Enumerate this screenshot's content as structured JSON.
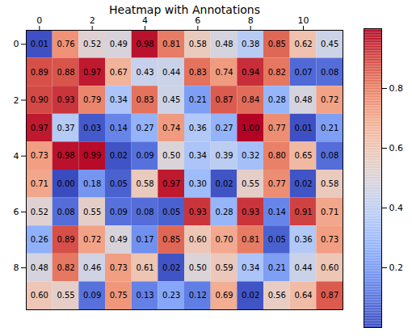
{
  "chart_data": {
    "type": "heatmap",
    "title": "Heatmap with Annotations",
    "values": [
      [
        0.01,
        0.76,
        0.52,
        0.49,
        0.98,
        0.81,
        0.58,
        0.48,
        0.38,
        0.85,
        0.62,
        0.45
      ],
      [
        0.89,
        0.88,
        0.97,
        0.67,
        0.43,
        0.44,
        0.83,
        0.74,
        0.94,
        0.82,
        0.07,
        0.08
      ],
      [
        0.9,
        0.93,
        0.79,
        0.34,
        0.83,
        0.45,
        0.21,
        0.87,
        0.84,
        0.28,
        0.48,
        0.72
      ],
      [
        0.97,
        0.37,
        0.03,
        0.14,
        0.27,
        0.74,
        0.36,
        0.27,
        1.0,
        0.77,
        0.01,
        0.21
      ],
      [
        0.73,
        0.98,
        0.99,
        0.02,
        0.09,
        0.5,
        0.34,
        0.39,
        0.32,
        0.8,
        0.65,
        0.08
      ],
      [
        0.71,
        0.0,
        0.18,
        0.05,
        0.58,
        0.97,
        0.3,
        0.02,
        0.55,
        0.77,
        0.02,
        0.58
      ],
      [
        0.52,
        0.08,
        0.55,
        0.09,
        0.08,
        0.05,
        0.93,
        0.28,
        0.93,
        0.14,
        0.91,
        0.71
      ],
      [
        0.26,
        0.89,
        0.72,
        0.49,
        0.17,
        0.85,
        0.6,
        0.7,
        0.81,
        0.05,
        0.36,
        0.73
      ],
      [
        0.48,
        0.82,
        0.46,
        0.73,
        0.61,
        0.02,
        0.5,
        0.59,
        0.34,
        0.21,
        0.44,
        0.6
      ],
      [
        0.6,
        0.55,
        0.09,
        0.75,
        0.13,
        0.23,
        0.12,
        0.69,
        0.02,
        0.56,
        0.64,
        0.87
      ]
    ],
    "value_labels": [
      [
        "0.01",
        "0.76",
        "0.52",
        "0.49",
        "0.98",
        "0.81",
        "0.58",
        "0.48",
        "0.38",
        "0.85",
        "0.62",
        "0.45"
      ],
      [
        "0.89",
        "0.88",
        "0.97",
        "0.67",
        "0.43",
        "0.44",
        "0.83",
        "0.74",
        "0.94",
        "0.82",
        "0.07",
        "0.08"
      ],
      [
        "0.90",
        "0.93",
        "0.79",
        "0.34",
        "0.83",
        "0.45",
        "0.21",
        "0.87",
        "0.84",
        "0.28",
        "0.48",
        "0.72"
      ],
      [
        "0.97",
        "0.37",
        "0.03",
        "0.14",
        "0.27",
        "0.74",
        "0.36",
        "0.27",
        "1.00",
        "0.77",
        "0.01",
        "0.21"
      ],
      [
        "0.73",
        "0.98",
        "0.99",
        "0.02",
        "0.09",
        "0.50",
        "0.34",
        "0.39",
        "0.32",
        "0.80",
        "0.65",
        "0.08"
      ],
      [
        "0.71",
        "0.00",
        "0.18",
        "0.05",
        "0.58",
        "0.97",
        "0.30",
        "0.02",
        "0.55",
        "0.77",
        "0.02",
        "0.58"
      ],
      [
        "0.52",
        "0.08",
        "0.55",
        "0.09",
        "0.08",
        "0.05",
        "0.93",
        "0.28",
        "0.93",
        "0.14",
        "0.91",
        "0.71"
      ],
      [
        "0.26",
        "0.89",
        "0.72",
        "0.49",
        "0.17",
        "0.85",
        "0.60",
        "0.70",
        "0.81",
        "0.05",
        "0.36",
        "0.73"
      ],
      [
        "0.48",
        "0.82",
        "0.46",
        "0.73",
        "0.61",
        "0.02",
        "0.50",
        "0.59",
        "0.34",
        "0.21",
        "0.44",
        "0.60"
      ],
      [
        "0.60",
        "0.55",
        "0.09",
        "0.75",
        "0.13",
        "0.23",
        "0.12",
        "0.69",
        "0.02",
        "0.56",
        "0.64",
        "0.87"
      ]
    ],
    "data_labels": true,
    "xlim": [
      -0.5,
      11.5
    ],
    "xticks": [
      0,
      2,
      4,
      6,
      8,
      10
    ],
    "ylim": [
      9.5,
      -0.5
    ],
    "yticks": [
      0,
      2,
      4,
      6,
      8
    ],
    "color": "coolwarm",
    "colorbar_range": [
      0,
      1
    ],
    "colorbar_ticks": [
      0.2,
      0.4,
      0.6,
      0.8
    ]
  }
}
